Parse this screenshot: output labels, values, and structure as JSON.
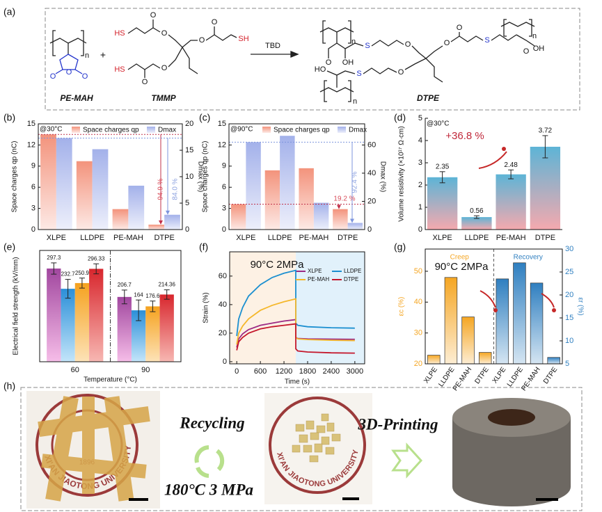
{
  "scheme": {
    "panel": "(a)",
    "reactants": [
      "PE-MAH",
      "TMMP"
    ],
    "product": "DTPE",
    "catalyst": "TBD",
    "plus": "+",
    "atoms": {
      "O": "O",
      "S": "S",
      "HS": "HS",
      "SH": "SH",
      "OH": "OH",
      "HO": "HO",
      "n": "n"
    }
  },
  "chart_data": [
    {
      "type": "bar",
      "panel": "(b)",
      "note": "@30°C",
      "legend": "top",
      "categories": [
        "XLPE",
        "LLDPE",
        "PE-MAH",
        "DTPE"
      ],
      "series": [
        {
          "name": "Space charges qp",
          "color": "#f3937c",
          "values": [
            13.5,
            9.7,
            2.9,
            0.7
          ]
        },
        {
          "name": "Dmax",
          "color": "#a3b1ea",
          "axis": "y2",
          "values": [
            17.3,
            15.2,
            8.3,
            2.8
          ]
        }
      ],
      "ylabel": "Space charges qp (nC)",
      "y2label": "Dmax (%)",
      "ylim": [
        0,
        15
      ],
      "yticks": [
        0,
        3,
        6,
        9,
        12,
        15
      ],
      "y2lim": [
        0,
        20
      ],
      "y2ticks": [
        0,
        5,
        10,
        15,
        20
      ],
      "annotations": [
        "94.9 %",
        "84.0 %"
      ]
    },
    {
      "type": "bar",
      "panel": "(c)",
      "note": "@90°C",
      "legend": "top",
      "categories": [
        "XLPE",
        "LLDPE",
        "PE-MAH",
        "DTPE"
      ],
      "series": [
        {
          "name": "Space charges qp",
          "color": "#f3937c",
          "values": [
            3.6,
            8.4,
            8.7,
            2.9
          ]
        },
        {
          "name": "Dmax",
          "color": "#a3b1ea",
          "axis": "y2",
          "values": [
            62,
            66.5,
            19,
            4.7
          ]
        }
      ],
      "ylabel": "Space charges qp (nC)",
      "y2label": "Dmax (%)",
      "ylim": [
        0,
        15
      ],
      "yticks": [
        0,
        3,
        6,
        9,
        12,
        15
      ],
      "y2lim": [
        0,
        75
      ],
      "y2ticks": [
        0,
        20,
        40,
        60
      ],
      "annotations": [
        "19.2 %",
        "92.4 %"
      ]
    },
    {
      "type": "bar",
      "panel": "(d)",
      "note": "@30°C",
      "show_values": true,
      "categories": [
        "XLPE",
        "LLDPE",
        "PE-MAH",
        "DTPE"
      ],
      "series": [
        {
          "color": "#5db4d6",
          "color2": "#f5a9ae",
          "values": [
            2.35,
            0.56,
            2.48,
            3.72
          ],
          "errors": [
            0.25,
            0.06,
            0.2,
            0.5
          ]
        }
      ],
      "ylabel": "Volume resistivity (×10¹⁷ Ω·cm)",
      "ylim": [
        0,
        5
      ],
      "yticks": [
        0,
        1,
        2,
        3,
        4,
        5
      ],
      "annotations": [
        "+36.8 %"
      ]
    },
    {
      "type": "bar",
      "panel": "(e)",
      "show_values": true,
      "separator": true,
      "categories": [
        "60",
        "90"
      ],
      "series": [
        {
          "color": "#a1479f",
          "color2": "#f6bde8",
          "values": [
            297.3,
            206.7
          ],
          "errors": [
            18,
            22
          ]
        },
        {
          "color": "#2b8fd8",
          "color2": "#c3e5fa",
          "values": [
            232.7,
            164
          ],
          "errors": [
            30,
            33
          ]
        },
        {
          "color": "#f5a21f",
          "color2": "#fde3b8",
          "values": [
            250.9,
            176.6
          ],
          "errors": [
            16,
            17
          ]
        },
        {
          "color": "#d8262d",
          "color2": "#f7b7b2",
          "values": [
            296.33,
            214.36
          ],
          "errors": [
            16,
            15
          ]
        }
      ],
      "ylabel": "Electrical field strength (kV/mm)",
      "xlabel": "Temperature (°C)",
      "ylim": [
        0,
        355
      ]
    },
    {
      "type": "line",
      "panel": "(f)",
      "legend": "inside",
      "x": [
        0,
        50,
        150,
        300,
        600,
        900,
        1200,
        1499,
        1500,
        1550,
        1800,
        2400,
        3000
      ],
      "series": [
        {
          "name": "XLPE",
          "color": "#9c2a84",
          "values": [
            10,
            16,
            19.5,
            22.5,
            25.5,
            27,
            28.5,
            29.5,
            17,
            16.3,
            16,
            15.8,
            15.7
          ]
        },
        {
          "name": "LLDPE",
          "color": "#1b8fd0",
          "values": [
            18,
            30,
            38,
            46,
            54,
            59,
            62,
            64,
            27,
            25.5,
            24.5,
            23.8,
            23.5
          ]
        },
        {
          "name": "PE-MAH",
          "color": "#f5b72a",
          "values": [
            12,
            20,
            25,
            30,
            36,
            39.5,
            42,
            44,
            17,
            16,
            15.5,
            15,
            14.8
          ]
        },
        {
          "name": "DTPE",
          "color": "#c4172c",
          "values": [
            8,
            14,
            17,
            20,
            23,
            24.5,
            25.5,
            26.5,
            9,
            7.5,
            6.8,
            6.2,
            6
          ]
        }
      ],
      "ylabel": "Strain (%)",
      "xlabel": "Time (s)",
      "xlim": [
        -180,
        3250
      ],
      "xticks": [
        0,
        600,
        1200,
        1800,
        2400,
        3000
      ],
      "ylim": [
        -1.5,
        77
      ],
      "yticks": [
        0,
        20,
        40,
        60
      ],
      "annotations": [
        "90°C 2MPa"
      ]
    },
    {
      "type": "bar",
      "panel": "(g)",
      "layout": "split",
      "axis_colors": true,
      "categories": [
        "XLPE",
        "LLDPE",
        "PE-MAH",
        "DTPE"
      ],
      "series": [
        {
          "name": "Creep",
          "color": "#f5a623",
          "values": [
            22.8,
            48,
            35.2,
            23.7
          ]
        },
        {
          "name": "Recovery",
          "color": "#2f7fc0",
          "axis": "y2",
          "values": [
            23.5,
            27,
            22.6,
            6.4
          ]
        }
      ],
      "ylabel": "εc (%)",
      "y2label": "εr (%)",
      "ylim": [
        20,
        57.2
      ],
      "yticks": [
        20,
        30,
        40,
        50
      ],
      "y2lim": [
        5,
        30
      ],
      "y2ticks": [
        5,
        10,
        15,
        20,
        25,
        30
      ],
      "annotations": [
        "90°C 2MPa"
      ]
    }
  ],
  "photos": {
    "panel": "(h)",
    "step1": "Recycling",
    "condition": "180°C 3 MPa",
    "step2": "3D-Printing",
    "seal_text": "XI'AN JIAOTONG UNIVERSITY",
    "seal_year": "1896"
  }
}
